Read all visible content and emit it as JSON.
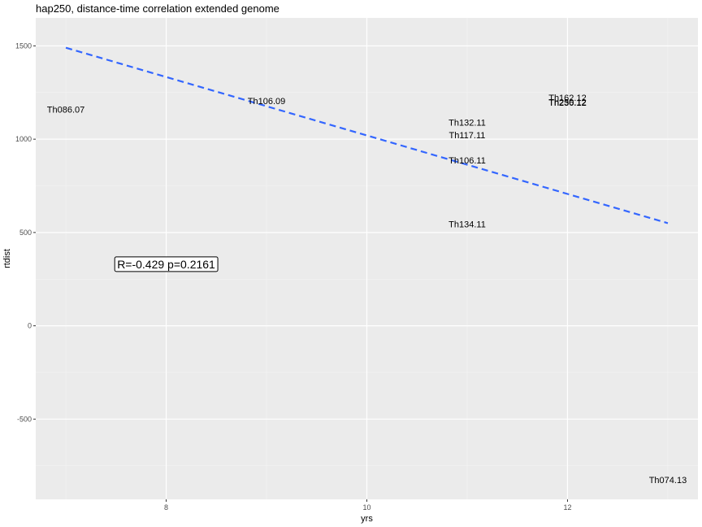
{
  "chart_data": {
    "type": "scatter",
    "title": "hap250, distance-time correlation extended genome",
    "xlabel": "yrs",
    "ylabel": "rtdist",
    "xlim": [
      6.7,
      13.3
    ],
    "ylim": [
      -930,
      1650
    ],
    "x_ticks": [
      8,
      10,
      12
    ],
    "y_ticks": [
      -500,
      0,
      500,
      1000,
      1500
    ],
    "grid": true,
    "points": [
      {
        "label": "Th086.07",
        "x": 7,
        "y": 1160
      },
      {
        "label": "Th106.09",
        "x": 9,
        "y": 1205
      },
      {
        "label": "Th132.11",
        "x": 11,
        "y": 1090
      },
      {
        "label": "Th117.11",
        "x": 11,
        "y": 1022
      },
      {
        "label": "Th106.11",
        "x": 11,
        "y": 888
      },
      {
        "label": "Th134.11",
        "x": 11,
        "y": 545
      },
      {
        "label": "Th162.12",
        "x": 12,
        "y": 1222
      },
      {
        "label": "Th250.12",
        "x": 12,
        "y": 1200
      },
      {
        "label": "Th236.12",
        "x": 12,
        "y": 1196
      },
      {
        "label": "Th074.13",
        "x": 13,
        "y": -825
      }
    ],
    "regression": {
      "x": [
        7,
        13
      ],
      "y": [
        1490,
        550
      ],
      "color": "#3366FF",
      "style": "dashed"
    },
    "annotation": {
      "text": "R=-0.429 p=0.2161",
      "x": 8,
      "y": 330
    }
  }
}
